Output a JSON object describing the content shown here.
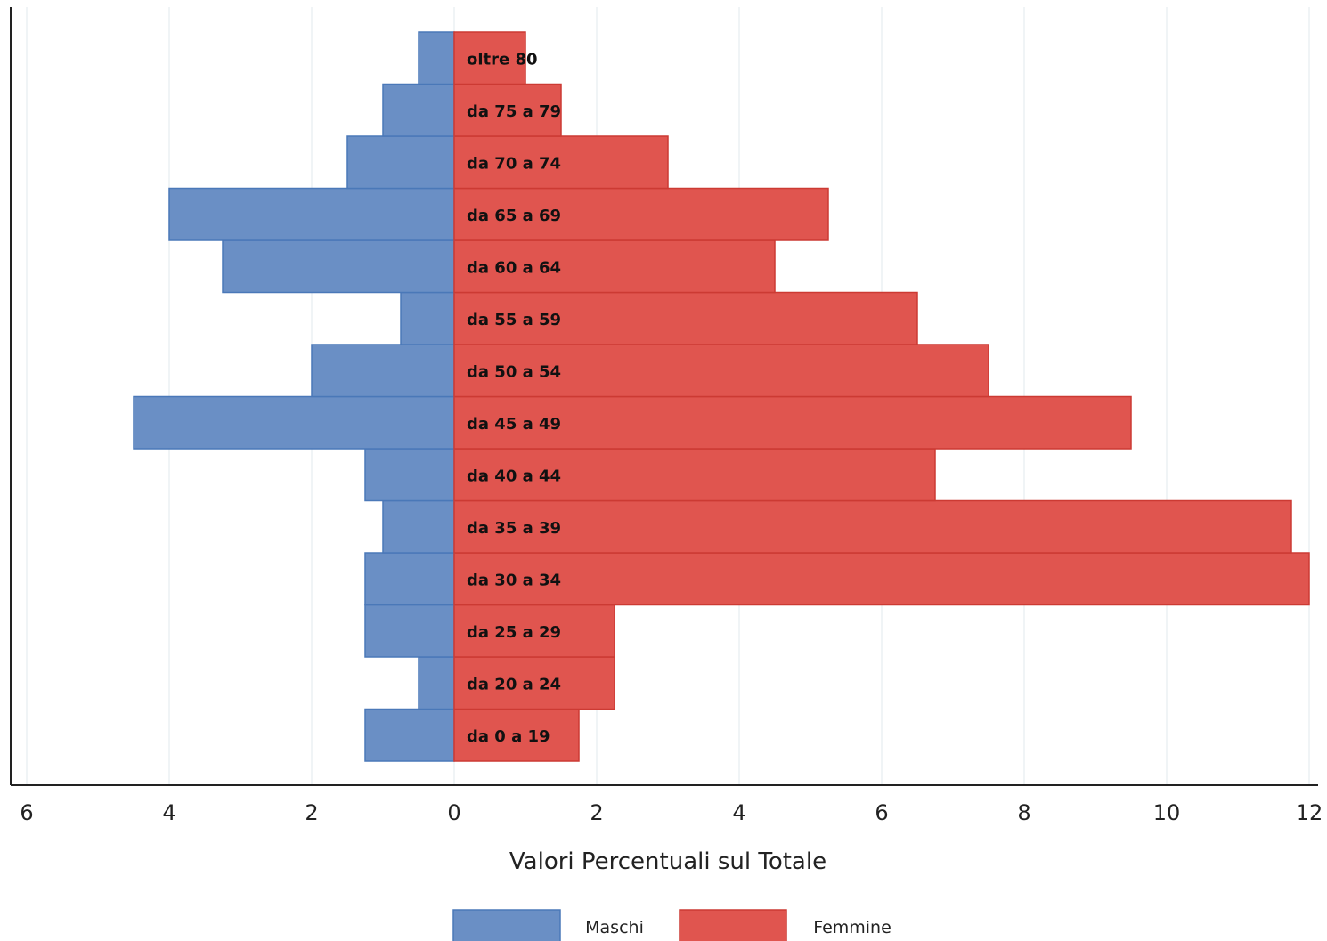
{
  "chart_data": {
    "type": "bar",
    "orientation": "horizontal",
    "layout": "population-pyramid",
    "categories": [
      "da 0 a 19",
      "da 20 a 24",
      "da 25 a 29",
      "da 30 a 34",
      "da 35 a 39",
      "da 40 a 44",
      "da 45 a 49",
      "da 50 a 54",
      "da 55 a 59",
      "da 60 a 64",
      "da 65 a 69",
      "da 70 a 74",
      "da 75 a 79",
      "oltre 80"
    ],
    "series": [
      {
        "name": "Maschi",
        "color": "#6a8fc5",
        "side": "left",
        "values": [
          1.25,
          0.5,
          1.25,
          1.25,
          1.0,
          1.25,
          4.5,
          2.0,
          0.75,
          3.25,
          4.0,
          1.5,
          1.0,
          0.5
        ]
      },
      {
        "name": "Femmine",
        "color": "#e0554f",
        "side": "right",
        "values": [
          1.75,
          2.25,
          2.25,
          12.0,
          11.75,
          6.75,
          9.5,
          7.5,
          6.5,
          4.5,
          5.25,
          3.0,
          1.5,
          1.0
        ]
      }
    ],
    "xlabel": "Valori Percentuali sul Totale",
    "xlim": [
      -6,
      12
    ],
    "xticks": [
      -6,
      -4,
      -2,
      0,
      2,
      4,
      6,
      8,
      10,
      12
    ],
    "xtick_labels": [
      "6",
      "4",
      "2",
      "0",
      "2",
      "4",
      "6",
      "8",
      "10",
      "12"
    ],
    "grid": "vertical",
    "legend_position": "bottom"
  }
}
